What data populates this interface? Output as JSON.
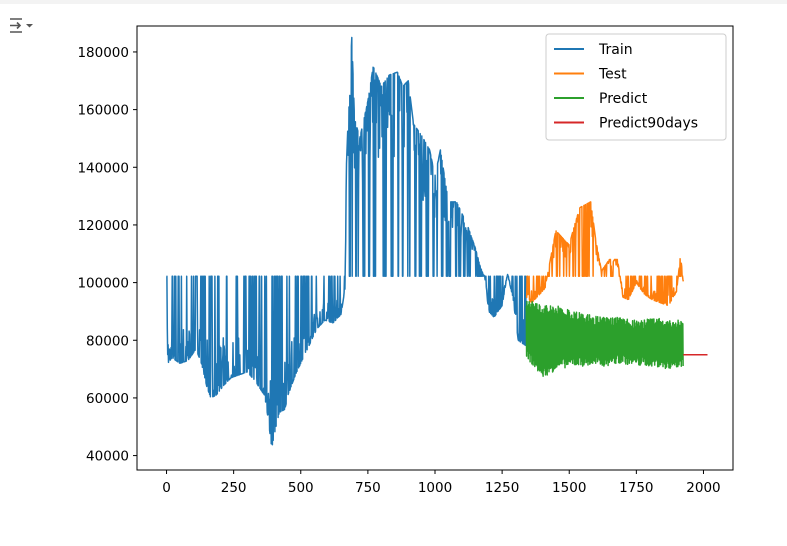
{
  "toolbar": {
    "output_icon": "output-toggle-icon"
  },
  "colors": {
    "train": "#1f77b4",
    "test": "#ff7f0e",
    "predict": "#2ca02c",
    "predict90": "#d62728"
  },
  "chart_data": {
    "type": "line",
    "title": "",
    "xlabel": "",
    "ylabel": "",
    "xlim": [
      -110,
      2110
    ],
    "ylim": [
      35000,
      189000
    ],
    "x_ticks": [
      0,
      250,
      500,
      750,
      1000,
      1250,
      1500,
      1750,
      2000
    ],
    "x_tick_labels": [
      "0",
      "250",
      "500",
      "750",
      "1000",
      "1250",
      "1500",
      "1750",
      "2000"
    ],
    "y_ticks": [
      40000,
      60000,
      80000,
      100000,
      120000,
      140000,
      160000,
      180000
    ],
    "y_tick_labels": [
      "40000",
      "60000",
      "80000",
      "100000",
      "120000",
      "140000",
      "160000",
      "180000"
    ],
    "legend_position": "top-right",
    "series": [
      {
        "name": "Train",
        "color": "#1f77b4",
        "style": "oscillating",
        "x_range": [
          0,
          1340
        ],
        "baseline": 102200,
        "envelope_x": [
          0,
          5,
          20,
          50,
          80,
          110,
          130,
          150,
          165,
          185,
          210,
          240,
          270,
          300,
          330,
          350,
          365,
          380,
          392,
          405,
          420,
          440,
          460,
          480,
          500,
          530,
          560,
          590,
          620,
          650,
          665,
          670,
          680,
          690,
          700,
          720,
          750,
          770,
          800,
          830,
          860,
          880,
          900,
          920,
          950,
          980,
          1000,
          1020,
          1050,
          1080,
          1100,
          1120,
          1150,
          1170,
          1185,
          1200,
          1220,
          1250,
          1270,
          1290,
          1310,
          1340
        ],
        "envelope_y": [
          102200,
          72000,
          74000,
          72000,
          73000,
          77000,
          72000,
          64000,
          60000,
          61000,
          64000,
          67000,
          68000,
          69000,
          66000,
          63000,
          61000,
          52000,
          42500,
          49000,
          55000,
          56000,
          63000,
          68000,
          72000,
          78000,
          84000,
          87000,
          86000,
          89000,
          98000,
          140000,
          165000,
          185000,
          157000,
          150000,
          163000,
          175000,
          168000,
          172000,
          173000,
          168000,
          170000,
          155000,
          151000,
          146000,
          137000,
          146000,
          128000,
          128000,
          124000,
          120000,
          112000,
          105000,
          102200,
          90000,
          88000,
          92000,
          103000,
          95000,
          80000,
          78000
        ]
      },
      {
        "name": "Test",
        "color": "#ff7f0e",
        "style": "oscillating",
        "x_range": [
          1340,
          1925
        ],
        "baseline": 102200,
        "envelope_x": [
          1340,
          1360,
          1390,
          1410,
          1430,
          1450,
          1470,
          1500,
          1520,
          1540,
          1560,
          1580,
          1600,
          1620,
          1650,
          1680,
          1700,
          1720,
          1750,
          1780,
          1810,
          1840,
          1870,
          1900,
          1915,
          1925
        ],
        "envelope_y": [
          95000,
          93000,
          96000,
          98000,
          108000,
          118000,
          116000,
          113000,
          120000,
          126000,
          127000,
          128000,
          114000,
          104000,
          108000,
          108000,
          95000,
          94000,
          100000,
          96000,
          94000,
          93000,
          92000,
          97000,
          110000,
          99000
        ]
      },
      {
        "name": "Predict",
        "color": "#2ca02c",
        "style": "oscillating",
        "x_range": [
          1340,
          1925
        ],
        "top_y": [
          95000,
          92000,
          92000,
          90000,
          89000,
          88000,
          88000,
          87000,
          88000,
          87000,
          87000
        ],
        "bottom_y": [
          74000,
          67000,
          70000,
          71000,
          71000,
          71000,
          72000,
          71000,
          71000,
          70000,
          71000
        ]
      },
      {
        "name": "Predict90days",
        "color": "#d62728",
        "style": "line",
        "x": [
          1925,
          2015
        ],
        "y": [
          75000,
          75000
        ]
      }
    ]
  }
}
